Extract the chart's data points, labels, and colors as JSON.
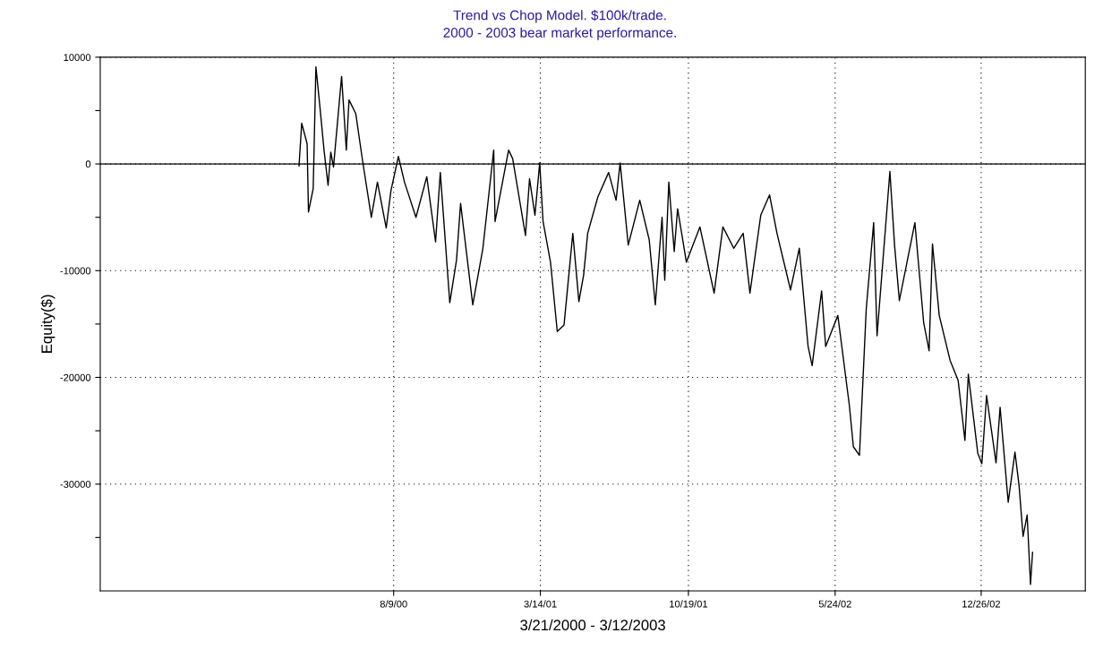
{
  "chart_data": {
    "type": "line",
    "title": "Trend vs Chop Model. $100k/trade.",
    "subtitle": "2000 - 2003 bear market performance.",
    "xlabel": "3/21/2000 - 3/12/2003",
    "ylabel": "Equity($)",
    "x": [
      "2000-03-22",
      "2000-03-26",
      "2000-04-03",
      "2000-04-05",
      "2000-04-12",
      "2000-04-16",
      "2000-04-22",
      "2000-04-28",
      "2000-05-04",
      "2000-05-08",
      "2000-05-12",
      "2000-05-24",
      "2000-05-31",
      "2000-06-04",
      "2000-06-14",
      "2000-06-24",
      "2000-07-07",
      "2000-07-16",
      "2000-07-29",
      "2000-08-05",
      "2000-08-16",
      "2000-08-25",
      "2000-09-11",
      "2000-09-27",
      "2000-10-10",
      "2000-10-17",
      "2000-10-31",
      "2000-11-10",
      "2000-11-16",
      "2000-12-04",
      "2000-12-19",
      "2001-01-04",
      "2001-01-06",
      "2001-01-26",
      "2001-02-01",
      "2001-02-20",
      "2001-02-26",
      "2001-03-06",
      "2001-03-13",
      "2001-03-18",
      "2001-03-29",
      "2001-04-08",
      "2001-04-18",
      "2001-05-01",
      "2001-05-10",
      "2001-05-17",
      "2001-05-23",
      "2001-06-07",
      "2001-06-23",
      "2001-07-04",
      "2001-07-10",
      "2001-07-22",
      "2001-08-08",
      "2001-08-22",
      "2001-08-31",
      "2001-09-10",
      "2001-09-14",
      "2001-09-20",
      "2001-09-28",
      "2001-10-03",
      "2001-10-16",
      "2001-11-05",
      "2001-11-26",
      "2001-12-09",
      "2001-12-25",
      "2002-01-08",
      "2002-01-18",
      "2002-02-03",
      "2002-02-16",
      "2002-02-27",
      "2002-03-19",
      "2002-04-01",
      "2002-04-14",
      "2002-04-20",
      "2002-04-28",
      "2002-05-04",
      "2002-05-10",
      "2002-05-28",
      "2002-06-14",
      "2002-06-20",
      "2002-06-29",
      "2002-07-09",
      "2002-07-20",
      "2002-07-25",
      "2002-08-13",
      "2002-08-20",
      "2002-08-27",
      "2002-09-19",
      "2002-10-02",
      "2002-10-10",
      "2002-10-15",
      "2002-10-25",
      "2002-11-10",
      "2002-11-22",
      "2002-12-02",
      "2002-12-07",
      "2002-12-21",
      "2002-12-27",
      "2003-01-03",
      "2003-01-17",
      "2003-01-23",
      "2003-02-04",
      "2003-02-14",
      "2003-02-20",
      "2003-02-26",
      "2003-03-04",
      "2003-03-09",
      "2003-03-12"
    ],
    "series": [
      {
        "color": "#000000",
        "values": [
          -200,
          3800,
          1900,
          -4500,
          -2300,
          9100,
          5300,
          1300,
          -2000,
          1100,
          -300,
          8200,
          1300,
          6000,
          4700,
          300,
          -5000,
          -1700,
          -6000,
          -2500,
          700,
          -1700,
          -5000,
          -1200,
          -7300,
          -800,
          -13000,
          -9000,
          -3700,
          -13200,
          -7900,
          1300,
          -5400,
          1300,
          500,
          -6700,
          -1400,
          -4800,
          100,
          -5400,
          -9200,
          -15700,
          -15100,
          -6500,
          -12900,
          -10400,
          -6500,
          -3100,
          -800,
          -3400,
          100,
          -7600,
          -3400,
          -7100,
          -13200,
          -5000,
          -10900,
          -1700,
          -8200,
          -4200,
          -9200,
          -5900,
          -12100,
          -5900,
          -7900,
          -6500,
          -12100,
          -4800,
          -2900,
          -6500,
          -11800,
          -7900,
          -17100,
          -18900,
          -14900,
          -11900,
          -17100,
          -14200,
          -22600,
          -26500,
          -27300,
          -13600,
          -5500,
          -16100,
          -700,
          -7700,
          -12800,
          -5500,
          -14900,
          -17500,
          -7500,
          -14200,
          -18400,
          -20300,
          -25900,
          -19700,
          -27100,
          -28100,
          -21700,
          -28000,
          -22800,
          -31700,
          -27000,
          -30100,
          -34900,
          -32900,
          -39400,
          -36400
        ]
      }
    ],
    "xlim": [
      "1999-06-02",
      "2003-05-29"
    ],
    "xticks": [
      {
        "value": "2000-08-09",
        "label": "8/9/00"
      },
      {
        "value": "2001-03-14",
        "label": "3/14/01"
      },
      {
        "value": "2001-10-19",
        "label": "10/19/01"
      },
      {
        "value": "2002-05-24",
        "label": "5/24/02"
      },
      {
        "value": "2002-12-26",
        "label": "12/26/02"
      }
    ],
    "ylim": [
      -40000,
      10000
    ],
    "yticks": [
      10000,
      {
        "value": 5000,
        "label": null
      },
      0,
      {
        "value": -5000,
        "label": null
      },
      -10000,
      {
        "value": -15000,
        "label": null
      },
      -20000,
      {
        "value": -25000,
        "label": null
      },
      -30000,
      {
        "value": -35000,
        "label": null
      }
    ],
    "grid": true,
    "line_style": "solid",
    "ref_lines": [
      {
        "axis": "y",
        "value": 0,
        "color": "#000000",
        "line_style": "solid"
      }
    ]
  }
}
